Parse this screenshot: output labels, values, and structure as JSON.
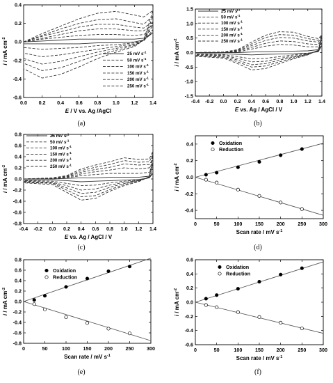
{
  "chart_data": [
    {
      "panel": "(a)",
      "type": "line",
      "xlabel_parts": [
        "E",
        " / V vs. Ag /AgCl"
      ],
      "ylabel_parts": [
        "i",
        " / mA cm",
        "-2"
      ],
      "xlim": [
        0.0,
        1.4
      ],
      "ylim": [
        -0.6,
        0.4
      ],
      "xticks": [
        "0.0",
        "0.2",
        "0.4",
        "0.6",
        "0.8",
        "1.0",
        "1.2",
        "1.4"
      ],
      "yticks": [
        "-0.6",
        "-0.4",
        "-0.2",
        "0.0",
        "0.2",
        "0.4"
      ],
      "legend_unit": "mV s",
      "legend_exp": "-1",
      "series": [
        {
          "name": "25",
          "style": "solid",
          "x": [
            0,
            0.2,
            0.4,
            0.6,
            0.8,
            1.0,
            1.2,
            1.3,
            1.4
          ],
          "y_up": [
            0.0,
            0.01,
            0.02,
            0.03,
            0.03,
            0.03,
            0.03,
            0.04,
            0.1
          ],
          "y_down": [
            -0.02,
            -0.02,
            -0.02,
            -0.02,
            -0.01,
            -0.01,
            0.0,
            0.02,
            0.1
          ]
        },
        {
          "name": "50",
          "style": "dash",
          "x": [
            0,
            0.2,
            0.4,
            0.6,
            0.8,
            1.0,
            1.2,
            1.3,
            1.4
          ],
          "y_up": [
            0.0,
            0.03,
            0.05,
            0.07,
            0.08,
            0.08,
            0.07,
            0.08,
            0.13
          ],
          "y_down": [
            -0.06,
            -0.08,
            -0.07,
            -0.06,
            -0.04,
            -0.03,
            -0.01,
            0.01,
            0.13
          ]
        },
        {
          "name": "100",
          "style": "dash",
          "x": [
            0,
            0.2,
            0.4,
            0.6,
            0.8,
            1.0,
            1.2,
            1.3,
            1.4
          ],
          "y_up": [
            0.0,
            0.04,
            0.08,
            0.12,
            0.14,
            0.14,
            0.12,
            0.12,
            0.18
          ],
          "y_down": [
            -0.12,
            -0.16,
            -0.14,
            -0.11,
            -0.08,
            -0.05,
            -0.02,
            0.02,
            0.18
          ]
        },
        {
          "name": "150",
          "style": "dash",
          "x": [
            0,
            0.2,
            0.4,
            0.6,
            0.8,
            1.0,
            1.2,
            1.3,
            1.4
          ],
          "y_up": [
            0.0,
            0.06,
            0.11,
            0.16,
            0.19,
            0.19,
            0.16,
            0.15,
            0.22
          ],
          "y_down": [
            -0.18,
            -0.24,
            -0.21,
            -0.16,
            -0.11,
            -0.07,
            -0.03,
            0.02,
            0.22
          ]
        },
        {
          "name": "200",
          "style": "dash",
          "x": [
            0,
            0.2,
            0.4,
            0.6,
            0.8,
            1.0,
            1.2,
            1.3,
            1.4
          ],
          "y_up": [
            0.0,
            0.07,
            0.14,
            0.2,
            0.24,
            0.25,
            0.21,
            0.19,
            0.28
          ],
          "y_down": [
            -0.23,
            -0.31,
            -0.28,
            -0.21,
            -0.14,
            -0.09,
            -0.04,
            0.02,
            0.28
          ]
        },
        {
          "name": "250",
          "style": "dash",
          "x": [
            0,
            0.2,
            0.4,
            0.6,
            0.8,
            1.0,
            1.2,
            1.3,
            1.4
          ],
          "y_up": [
            0.0,
            0.09,
            0.17,
            0.25,
            0.31,
            0.33,
            0.29,
            0.27,
            0.34
          ],
          "y_down": [
            -0.29,
            -0.39,
            -0.35,
            -0.27,
            -0.18,
            -0.11,
            -0.05,
            0.02,
            0.34
          ]
        }
      ]
    },
    {
      "panel": "(b)",
      "type": "line",
      "xlabel_parts": [
        "E",
        " vs. Ag / AgCl / V"
      ],
      "ylabel_parts": [
        "i",
        " / mA cm",
        "-2"
      ],
      "xlim": [
        -0.4,
        1.4
      ],
      "ylim": [
        -1.5,
        1.5
      ],
      "xticks": [
        "-0.4",
        "-0.2",
        "0.0",
        "0.2",
        "0.4",
        "0.6",
        "0.8",
        "1.0",
        "1.2",
        "1.4"
      ],
      "yticks": [
        "-1.5",
        "-1.0",
        "-0.5",
        "0.0",
        "0.5",
        "1.0",
        "1.5"
      ],
      "legend_unit": "mV s",
      "legend_exp": "-1",
      "series": [
        {
          "name": "25",
          "style": "solid",
          "x": [
            -0.4,
            0.0,
            0.2,
            0.4,
            0.6,
            0.8,
            1.0,
            1.2,
            1.35,
            1.4
          ],
          "y_up": [
            0.0,
            0.0,
            0.0,
            0.02,
            0.03,
            0.04,
            0.05,
            0.06,
            0.1,
            0.25
          ],
          "y_down": [
            -0.03,
            -0.04,
            -0.06,
            -0.08,
            -0.06,
            -0.05,
            -0.04,
            -0.02,
            0.03,
            0.25
          ]
        },
        {
          "name": "50",
          "style": "dash",
          "x": [
            -0.4,
            0.0,
            0.2,
            0.4,
            0.6,
            0.8,
            1.0,
            1.2,
            1.35,
            1.4
          ],
          "y_up": [
            0.0,
            0.0,
            0.02,
            0.12,
            0.22,
            0.28,
            0.26,
            0.2,
            0.2,
            0.35
          ],
          "y_down": [
            -0.05,
            -0.07,
            -0.14,
            -0.22,
            -0.2,
            -0.14,
            -0.08,
            -0.03,
            0.05,
            0.35
          ]
        },
        {
          "name": "100",
          "style": "dash",
          "x": [
            -0.4,
            0.0,
            0.2,
            0.4,
            0.6,
            0.8,
            1.0,
            1.2,
            1.35,
            1.4
          ],
          "y_up": [
            0.0,
            0.01,
            0.04,
            0.18,
            0.32,
            0.4,
            0.38,
            0.3,
            0.28,
            0.45
          ],
          "y_down": [
            -0.07,
            -0.1,
            -0.2,
            -0.32,
            -0.3,
            -0.2,
            -0.12,
            -0.05,
            0.06,
            0.45
          ]
        },
        {
          "name": "150",
          "style": "dash",
          "x": [
            -0.4,
            0.0,
            0.2,
            0.4,
            0.6,
            0.8,
            1.0,
            1.2,
            1.35,
            1.4
          ],
          "y_up": [
            0.0,
            0.01,
            0.06,
            0.24,
            0.42,
            0.52,
            0.5,
            0.4,
            0.36,
            0.52
          ],
          "y_down": [
            -0.09,
            -0.13,
            -0.26,
            -0.42,
            -0.38,
            -0.26,
            -0.15,
            -0.06,
            0.07,
            0.52
          ]
        },
        {
          "name": "200",
          "style": "dash",
          "x": [
            -0.4,
            0.0,
            0.2,
            0.4,
            0.6,
            0.8,
            1.0,
            1.2,
            1.35,
            1.4
          ],
          "y_up": [
            0.0,
            0.02,
            0.08,
            0.3,
            0.52,
            0.62,
            0.6,
            0.48,
            0.42,
            0.58
          ],
          "y_down": [
            -0.11,
            -0.16,
            -0.32,
            -0.5,
            -0.46,
            -0.32,
            -0.18,
            -0.07,
            0.08,
            0.58
          ]
        },
        {
          "name": "250",
          "style": "dash",
          "x": [
            -0.4,
            0.0,
            0.2,
            0.4,
            0.6,
            0.8,
            1.0,
            1.2,
            1.35,
            1.4
          ],
          "y_up": [
            0.0,
            0.02,
            0.1,
            0.36,
            0.6,
            0.72,
            0.7,
            0.56,
            0.48,
            0.62
          ],
          "y_down": [
            -0.13,
            -0.19,
            -0.38,
            -0.6,
            -0.55,
            -0.38,
            -0.21,
            -0.08,
            0.09,
            0.62
          ]
        }
      ]
    },
    {
      "panel": "(c)",
      "type": "line",
      "xlabel_parts": [
        "E",
        " vs. Ag / AgCl / V"
      ],
      "ylabel_parts": [
        "i",
        " / mA cm",
        "-2"
      ],
      "xlim": [
        -0.4,
        1.4
      ],
      "ylim": [
        -0.8,
        0.8
      ],
      "xticks": [
        "-0.4",
        "-0.2",
        "0.0",
        "0.2",
        "0.4",
        "0.6",
        "0.8",
        "1.0",
        "1.2",
        "1.4"
      ],
      "yticks": [
        "-0.8",
        "-0.6",
        "-0.4",
        "-0.2",
        "0.0",
        "0.2",
        "0.4",
        "0.6",
        "0.8"
      ],
      "legend_unit": "mV s",
      "legend_exp": "-1",
      "series": [
        {
          "name": "25",
          "style": "solid",
          "x": [
            -0.4,
            0.0,
            0.2,
            0.4,
            0.6,
            0.8,
            1.0,
            1.2,
            1.35,
            1.4
          ],
          "y_up": [
            0.0,
            0.0,
            0.01,
            0.02,
            0.02,
            0.03,
            0.03,
            0.03,
            0.05,
            0.1
          ],
          "y_down": [
            -0.02,
            -0.02,
            -0.03,
            -0.05,
            -0.04,
            -0.03,
            -0.02,
            -0.01,
            0.02,
            0.1
          ]
        },
        {
          "name": "50",
          "style": "dash",
          "x": [
            -0.4,
            0.0,
            0.2,
            0.4,
            0.6,
            0.8,
            1.0,
            1.2,
            1.35,
            1.4
          ],
          "y_up": [
            0.0,
            0.0,
            0.02,
            0.06,
            0.08,
            0.1,
            0.1,
            0.1,
            0.12,
            0.18
          ],
          "y_down": [
            -0.03,
            -0.04,
            -0.08,
            -0.12,
            -0.11,
            -0.07,
            -0.04,
            -0.02,
            0.02,
            0.18
          ]
        },
        {
          "name": "100",
          "style": "dash",
          "x": [
            -0.4,
            0.0,
            0.2,
            0.4,
            0.6,
            0.8,
            1.0,
            1.2,
            1.35,
            1.4
          ],
          "y_up": [
            0.0,
            0.01,
            0.03,
            0.09,
            0.13,
            0.16,
            0.2,
            0.18,
            0.2,
            0.28
          ],
          "y_down": [
            -0.04,
            -0.06,
            -0.12,
            -0.2,
            -0.18,
            -0.11,
            -0.06,
            -0.03,
            0.03,
            0.28
          ]
        },
        {
          "name": "150",
          "style": "dash",
          "x": [
            -0.4,
            0.0,
            0.2,
            0.4,
            0.6,
            0.8,
            1.0,
            1.2,
            1.35,
            1.4
          ],
          "y_up": [
            0.0,
            0.01,
            0.04,
            0.12,
            0.17,
            0.21,
            0.27,
            0.25,
            0.26,
            0.36
          ],
          "y_down": [
            -0.05,
            -0.07,
            -0.16,
            -0.26,
            -0.24,
            -0.15,
            -0.08,
            -0.03,
            0.03,
            0.36
          ]
        },
        {
          "name": "200",
          "style": "dash",
          "x": [
            -0.4,
            0.0,
            0.2,
            0.4,
            0.6,
            0.8,
            1.0,
            1.2,
            1.35,
            1.4
          ],
          "y_up": [
            0.0,
            0.01,
            0.05,
            0.15,
            0.21,
            0.26,
            0.33,
            0.3,
            0.31,
            0.44
          ],
          "y_down": [
            -0.06,
            -0.08,
            -0.2,
            -0.32,
            -0.3,
            -0.19,
            -0.1,
            -0.04,
            0.04,
            0.44
          ]
        },
        {
          "name": "250",
          "style": "dash",
          "x": [
            -0.4,
            0.0,
            0.2,
            0.4,
            0.6,
            0.8,
            1.0,
            1.2,
            1.35,
            1.4
          ],
          "y_up": [
            0.0,
            0.02,
            0.06,
            0.18,
            0.25,
            0.31,
            0.38,
            0.35,
            0.36,
            0.5
          ],
          "y_down": [
            -0.07,
            -0.1,
            -0.24,
            -0.38,
            -0.35,
            -0.22,
            -0.12,
            -0.05,
            0.04,
            0.5
          ]
        }
      ]
    },
    {
      "panel": "(d)",
      "type": "scatter",
      "xlabel_parts": [
        "Scan rate / mV s",
        "-1"
      ],
      "ylabel_parts": [
        "i",
        " / mA cm",
        "-2"
      ],
      "xlim": [
        0,
        300
      ],
      "ylim": [
        -0.5,
        0.5
      ],
      "xticks": [
        "0",
        "50",
        "100",
        "150",
        "200",
        "250",
        "300"
      ],
      "yticks": [
        "-0.4",
        "-0.2",
        "0.0",
        "0.2",
        "0.4"
      ],
      "series": [
        {
          "name": "Oxidation",
          "marker": "filled",
          "x": [
            25,
            50,
            100,
            150,
            200,
            250
          ],
          "y": [
            0.03,
            0.055,
            0.12,
            0.185,
            0.265,
            0.34
          ],
          "fit": [
            [
              0,
              0.0
            ],
            [
              300,
              0.41
            ]
          ]
        },
        {
          "name": "Reduction",
          "marker": "open",
          "x": [
            25,
            50,
            100,
            150,
            200,
            250
          ],
          "y": [
            -0.03,
            -0.065,
            -0.15,
            -0.225,
            -0.305,
            -0.385
          ],
          "fit": [
            [
              0,
              0.0
            ],
            [
              300,
              -0.46
            ]
          ]
        }
      ]
    },
    {
      "panel": "(e)",
      "type": "scatter",
      "xlabel_parts": [
        "Scan rate / mV s",
        "-1"
      ],
      "ylabel_parts": [
        "i",
        " / mA cm",
        "-2"
      ],
      "xlim": [
        0,
        300
      ],
      "ylim": [
        -0.8,
        0.8
      ],
      "xticks": [
        "0",
        "50",
        "100",
        "150",
        "200",
        "250",
        "300"
      ],
      "yticks": [
        "-0.8",
        "-0.6",
        "-0.4",
        "-0.2",
        "0.0",
        "0.2",
        "0.4",
        "0.6",
        "0.8"
      ],
      "series": [
        {
          "name": "Oxidation",
          "marker": "filled",
          "x": [
            25,
            50,
            100,
            150,
            200,
            250
          ],
          "y": [
            0.03,
            0.11,
            0.28,
            0.44,
            0.58,
            0.67
          ],
          "fit": [
            [
              0,
              0.0
            ],
            [
              300,
              0.83
            ]
          ]
        },
        {
          "name": "Reduction",
          "marker": "open",
          "x": [
            25,
            50,
            100,
            150,
            200,
            250
          ],
          "y": [
            -0.05,
            -0.15,
            -0.3,
            -0.41,
            -0.52,
            -0.61
          ],
          "fit": [
            [
              0,
              0.0
            ],
            [
              300,
              -0.75
            ]
          ]
        }
      ]
    },
    {
      "panel": "(f)",
      "type": "scatter",
      "xlabel_parts": [
        "Scan rate / mV s",
        "-1"
      ],
      "ylabel_parts": [
        "i",
        " / mA cm",
        "-2"
      ],
      "xlim": [
        0,
        300
      ],
      "ylim": [
        -0.6,
        0.6
      ],
      "xticks": [
        "0",
        "50",
        "100",
        "150",
        "200",
        "250",
        "300"
      ],
      "yticks": [
        "-0.6",
        "-0.4",
        "-0.2",
        "0.0",
        "0.2",
        "0.4",
        "0.6"
      ],
      "series": [
        {
          "name": "Oxidation",
          "marker": "filled",
          "x": [
            25,
            50,
            100,
            150,
            200,
            250
          ],
          "y": [
            0.05,
            0.1,
            0.19,
            0.29,
            0.39,
            0.48
          ],
          "fit": [
            [
              0,
              0.0
            ],
            [
              300,
              0.57
            ]
          ]
        },
        {
          "name": "Reduction",
          "marker": "open",
          "x": [
            25,
            50,
            100,
            150,
            200,
            250
          ],
          "y": [
            -0.04,
            -0.07,
            -0.14,
            -0.21,
            -0.29,
            -0.37
          ],
          "fit": [
            [
              0,
              0.0
            ],
            [
              300,
              -0.44
            ]
          ]
        }
      ]
    }
  ]
}
